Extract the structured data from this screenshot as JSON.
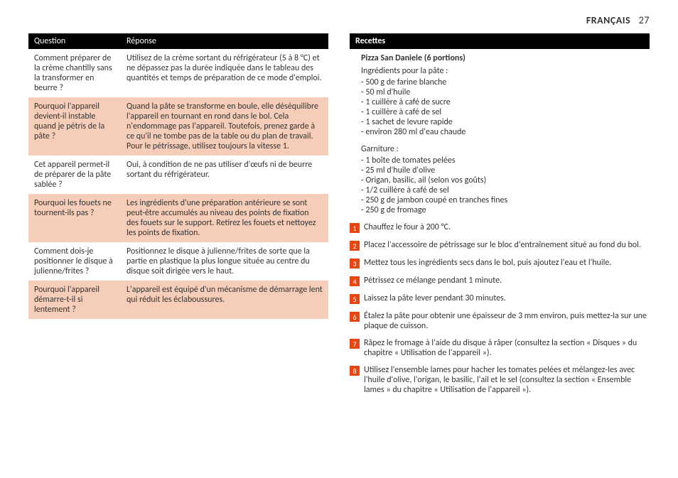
{
  "header": {
    "language": "FRANÇAIS",
    "page": "27"
  },
  "faq": {
    "cols": {
      "q": "Question",
      "r": "Réponse"
    },
    "rows": [
      {
        "q": "Comment préparer de la crème chantilly sans la transformer en beurre ?",
        "r": "Utilisez de la crème sortant du réfrigérateur (5 à 8 °C) et ne dépassez pas la durée indiquée dans le tableau des quantités et temps de préparation de ce mode d'emploi."
      },
      {
        "q": "Pourquoi l'appareil devient-il instable quand je pétris de la pâte ?",
        "r": "Quand la pâte se transforme en boule, elle déséquilibre l'appareil en tournant en rond dans le bol. Cela n'endommage pas l'appareil. Toutefois, prenez garde à ce qu'il ne tombe pas de la table ou du plan de travail. Pour le pétrissage, utilisez toujours la vitesse 1."
      },
      {
        "q": "Cet appareil permet-il de préparer de la pâte sablée ?",
        "r": "Oui, à condition de ne pas utiliser d'œufs ni de beurre sortant du réfrigérateur."
      },
      {
        "q": "Pourquoi les fouets ne tournent-ils pas ?",
        "r": "Les ingrédients d'une préparation antérieure se sont peut-être accumulés au niveau des points de fixation des fouets sur le support. Retirez les fouets et nettoyez les points de fixation."
      },
      {
        "q": "Comment dois-je positionner le disque à julienne/frites ?",
        "r": "Positionnez le disque à julienne/frites de sorte que la partie en plastique la plus longue située au centre du disque soit dirigée vers le haut."
      },
      {
        "q": "Pourquoi l'appareil démarre-t-il si lentement ?",
        "r": "L'appareil est équipé d'un mécanisme de démarrage lent qui réduit les éclaboussures."
      }
    ]
  },
  "recipe": {
    "section": "Recettes",
    "title": "Pizza San Daniele (6 portions)",
    "dough_label": "Ingrédients pour la pâte :",
    "dough": [
      "-   500 g de farine blanche",
      "-   50 ml d'huile",
      "-   1 cuillère à café de sucre",
      "-   1 cuillère à café de sel",
      "-   1 sachet de levure rapide",
      "-   environ 280 ml d'eau chaude"
    ],
    "topping_label": "Garniture :",
    "topping": [
      "-   1 boîte de tomates pelées",
      "-   25 ml d'huile d'olive",
      "-   Origan, basilic, ail (selon vos goûts)",
      "-   1/2 cuillère à café de sel",
      "-   250 g de jambon coupé en tranches fines",
      "-   250 g de fromage"
    ],
    "steps": [
      "Chauffez le four à 200 °C.",
      "Placez l'accessoire de pétrissage sur le bloc d'entraînement situé au fond du bol.",
      "Mettez tous les ingrédients secs dans le bol, puis ajoutez l'eau et l'huile.",
      "Pétrissez ce mélange pendant 1 minute.",
      "Laissez la pâte lever pendant 30 minutes.",
      "Étalez la pâte pour obtenir une épaisseur de 3 mm environ, puis mettez-la sur une plaque de cuisson.",
      "Râpez le fromage à l'aide du disque à râper (consultez la section « Disques » du chapitre « Utilisation de l'appareil »).",
      "Utilisez l'ensemble lames pour hacher les tomates pelées et mélangez-les avec l'huile d'olive, l'origan, le basilic, l'ail et le sel (consultez la section « Ensemble lames » du chapitre « Utilisation de l'appareil »)."
    ]
  }
}
